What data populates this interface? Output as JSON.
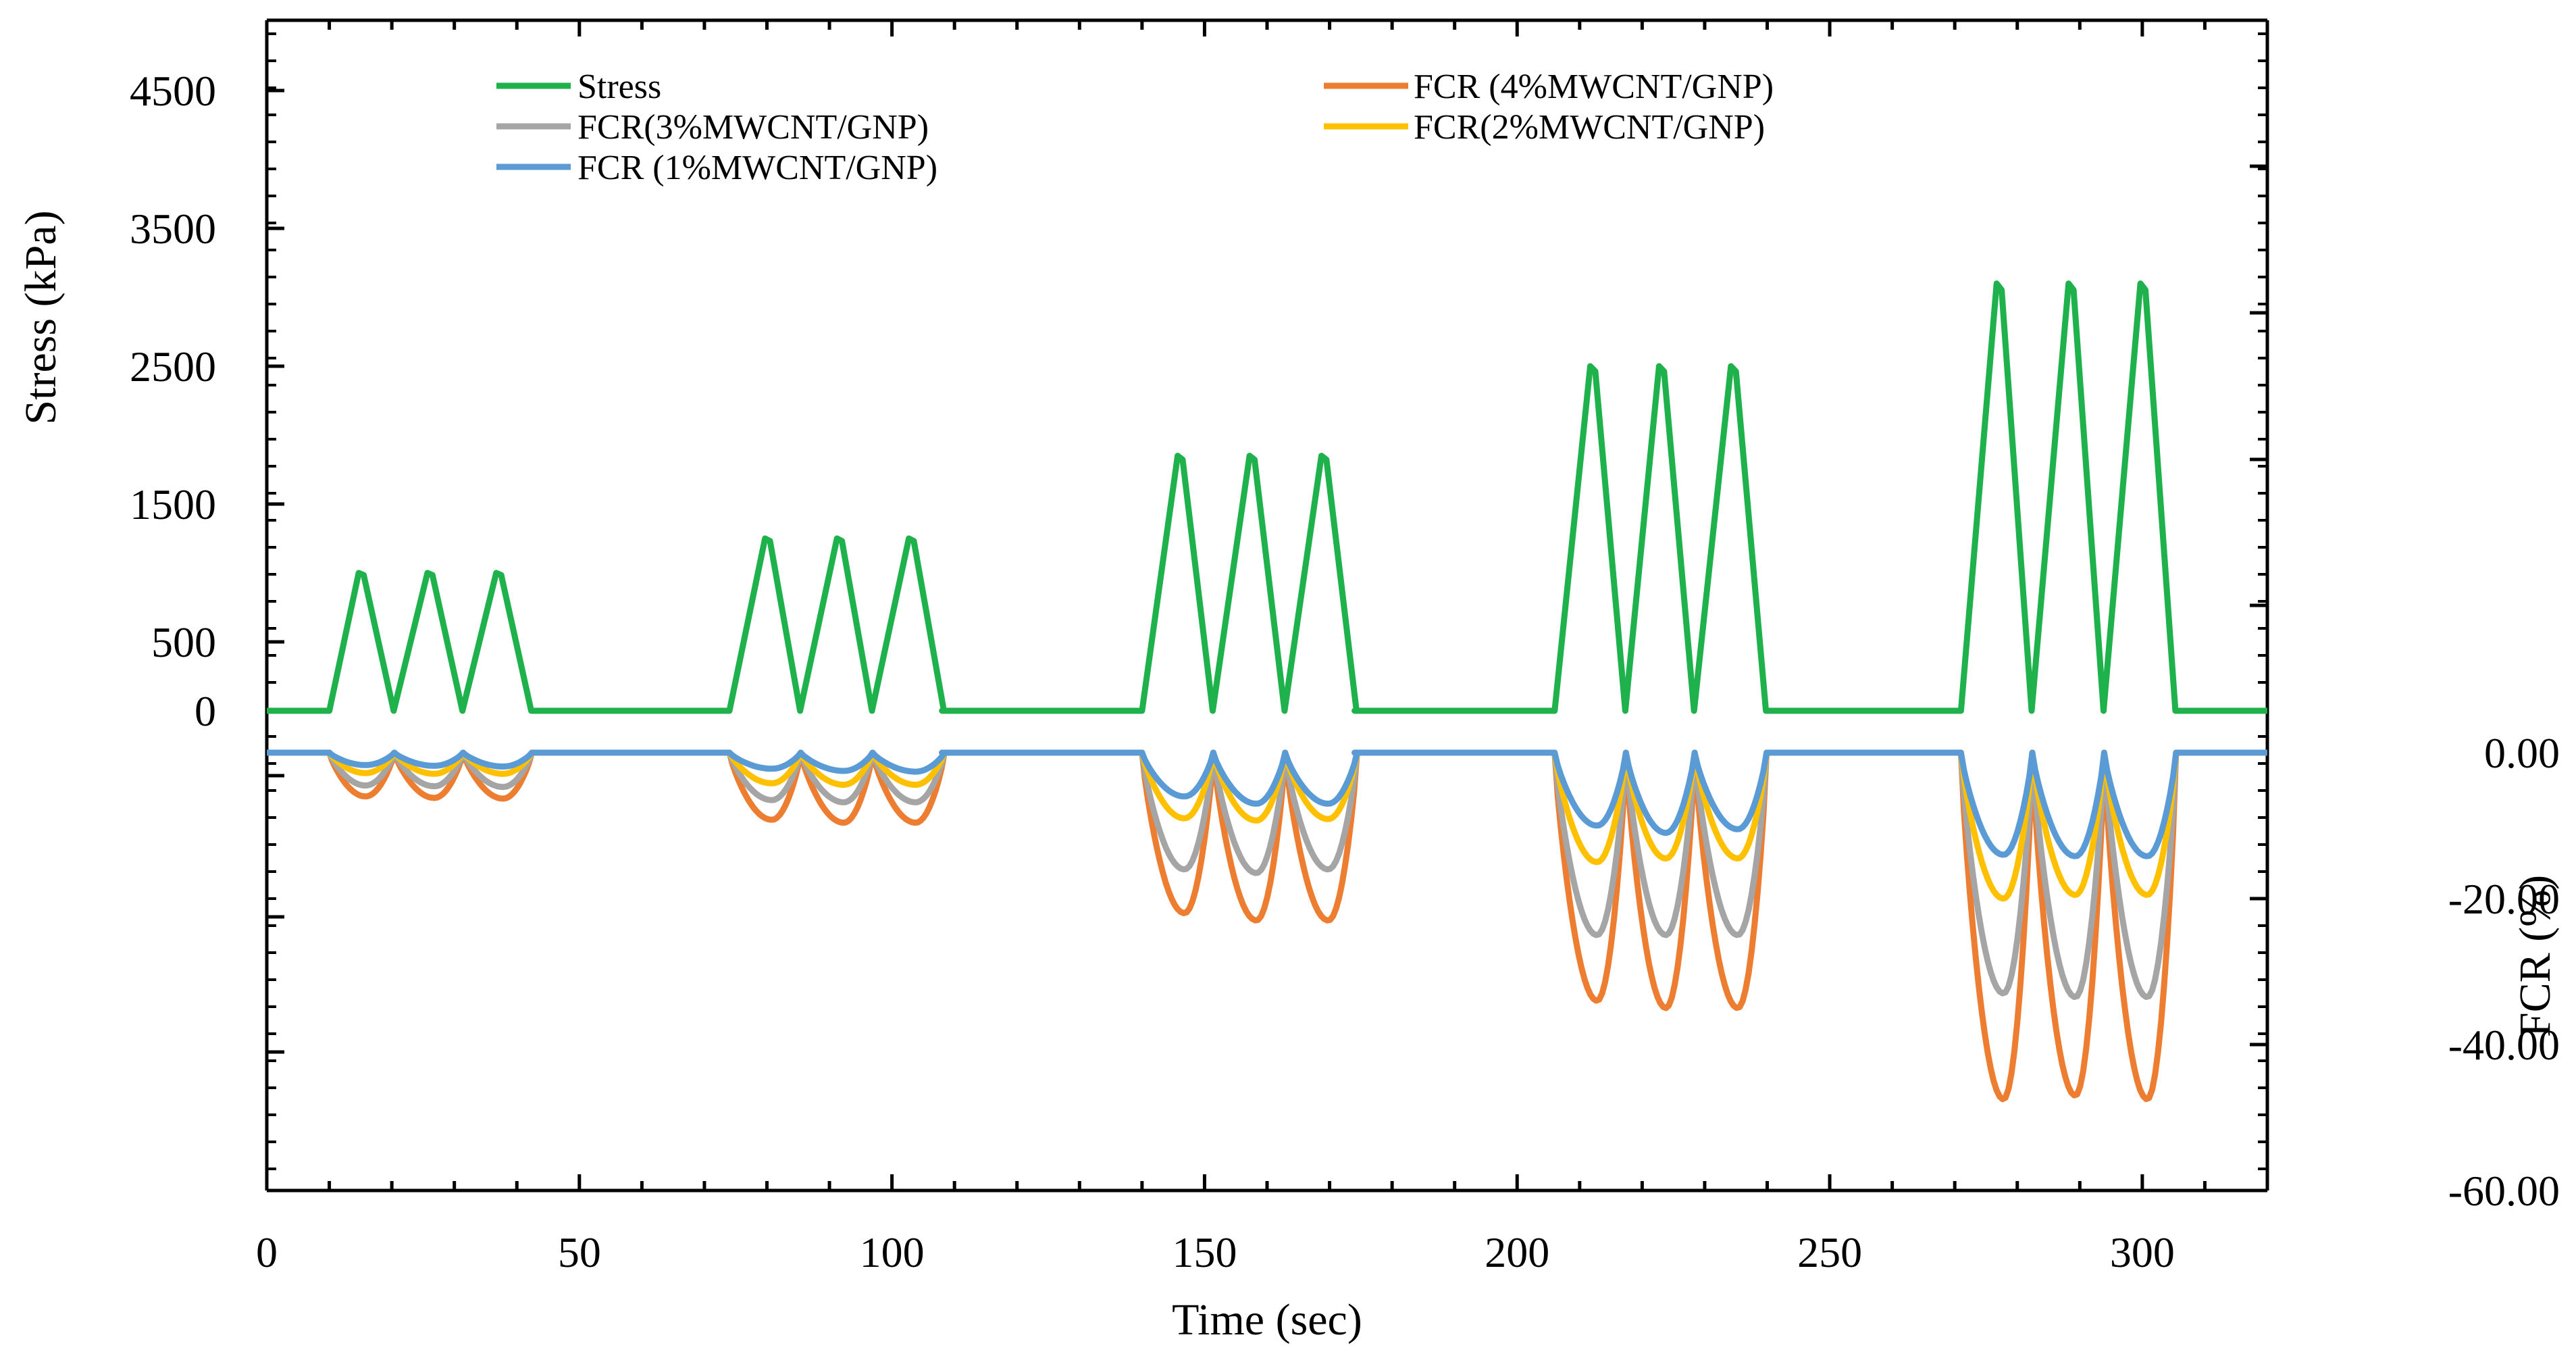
{
  "chart_data": {
    "type": "line",
    "title": "",
    "xlabel": "Time (sec)",
    "ylabel_left": "Stress  (kPa)",
    "ylabel_right": "FCR (%)",
    "xlim": [
      0,
      320
    ],
    "x_ticks": [
      0,
      50,
      100,
      150,
      200,
      250,
      300
    ],
    "y_left_tick_labels": [
      "4500",
      "3500",
      "2500",
      "1500",
      "500",
      "0"
    ],
    "y_left_tick_values": [
      4500,
      3500,
      2500,
      1500,
      500,
      0
    ],
    "y_right_ticks": [
      "0.00",
      "-20.00",
      "-40.00",
      "-60.00"
    ],
    "y_right_tick_values": [
      0,
      -20,
      -40,
      -60
    ],
    "legend": [
      "Stress",
      "FCR (4%MWCNT/GNP)",
      "FCR(3%MWCNT/GNP)",
      "FCR(2%MWCNT/GNP)",
      "FCR (1%MWCNT/GNP)"
    ],
    "colors": {
      "stress": "#1fb14c",
      "fcr4": "#ed7d31",
      "fcr3": "#a5a5a5",
      "fcr2": "#ffc000",
      "fcr1": "#5b9bd5"
    },
    "loading_blocks": [
      {
        "start": 10,
        "end": 43,
        "peak_stress": 1000,
        "cycle_peaks": [
          15,
          26,
          37
        ],
        "fcr4_min": [
          -6,
          -6.2,
          -6.3
        ],
        "fcr3_min": [
          -4.5,
          -4.6,
          -4.7
        ],
        "fcr2_min": [
          -2.8,
          -2.9,
          -2.9
        ],
        "fcr1_min": [
          -1.7,
          -1.8,
          -1.9
        ]
      },
      {
        "start": 74,
        "end": 108,
        "peak_stress": 1250,
        "cycle_peaks": [
          80,
          91.5,
          103
        ],
        "fcr4_min": [
          -9.2,
          -9.6,
          -9.6
        ],
        "fcr3_min": [
          -6.5,
          -6.8,
          -6.8
        ],
        "fcr2_min": [
          -4.2,
          -4.4,
          -4.4
        ],
        "fcr1_min": [
          -2.2,
          -2.5,
          -2.6
        ]
      },
      {
        "start": 140,
        "end": 174,
        "peak_stress": 1850,
        "cycle_peaks": [
          146,
          157.5,
          169
        ],
        "fcr4_min": [
          -22,
          -23,
          -23
        ],
        "fcr3_min": [
          -16,
          -16.5,
          -16
        ],
        "fcr2_min": [
          -9,
          -9.3,
          -9.1
        ],
        "fcr1_min": [
          -6,
          -7,
          -7
        ]
      },
      {
        "start": 206,
        "end": 240,
        "peak_stress": 2500,
        "cycle_peaks": [
          212,
          223,
          234.5
        ],
        "fcr4_min": [
          -34,
          -35,
          -35
        ],
        "fcr3_min": [
          -25,
          -25,
          -25
        ],
        "fcr2_min": [
          -15,
          -14.5,
          -14.5
        ],
        "fcr1_min": [
          -10,
          -11,
          -10.5
        ]
      },
      {
        "start": 271,
        "end": 306,
        "peak_stress": 3100,
        "cycle_peaks": [
          277,
          288.5,
          300
        ],
        "fcr4_min": [
          -47.5,
          -47,
          -47.5
        ],
        "fcr3_min": [
          -33,
          -33.5,
          -33.5
        ],
        "fcr2_min": [
          -20,
          -19.5,
          -19.5
        ],
        "fcr1_min": [
          -14,
          -14.2,
          -14.2
        ]
      }
    ]
  }
}
